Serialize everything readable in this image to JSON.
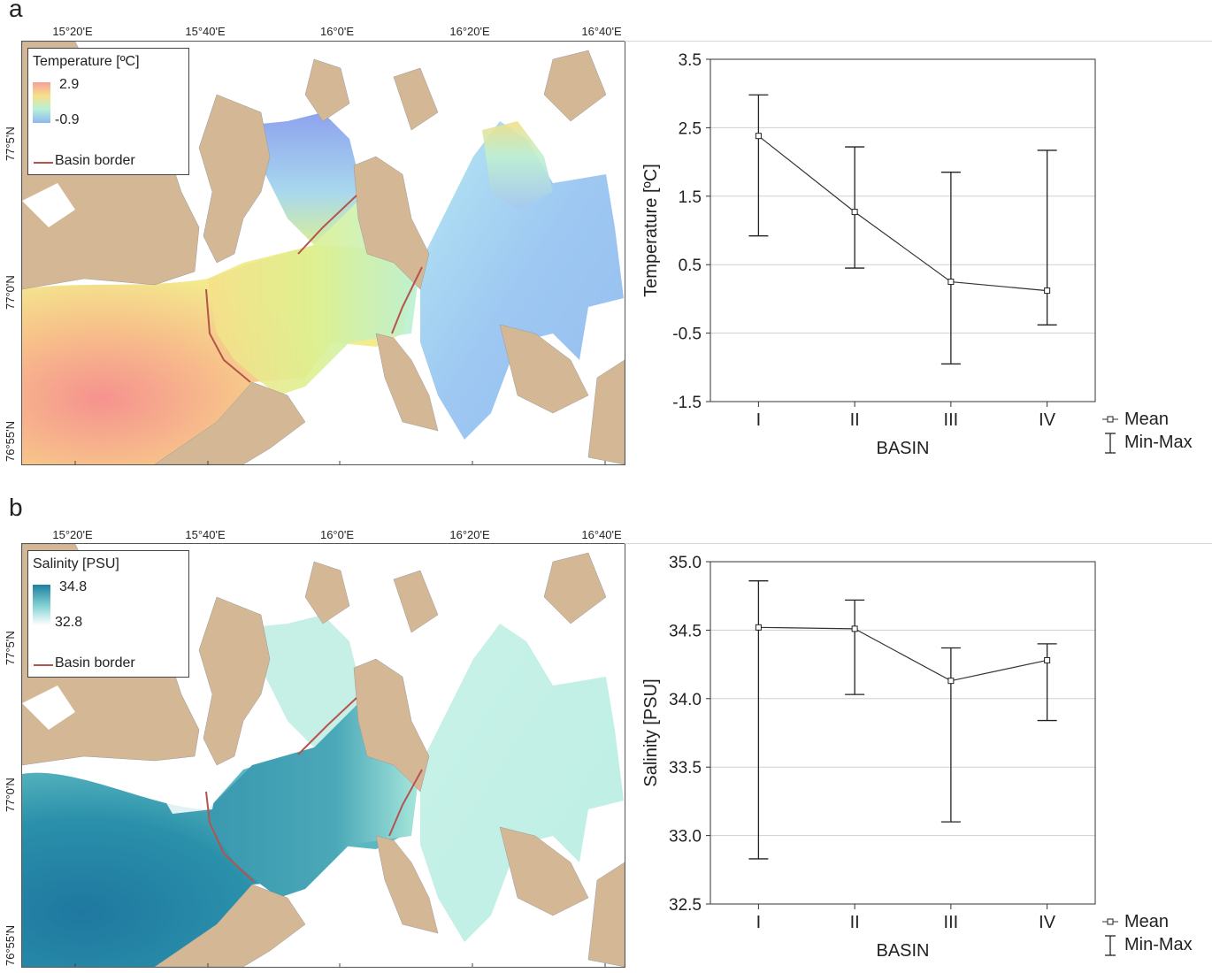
{
  "panels": [
    {
      "letter": "a",
      "map": {
        "lon_ticks": [
          "15°20'E",
          "15°40'E",
          "16°0'E",
          "16°20'E",
          "16°40'E"
        ],
        "lat_ticks": [
          "77°5'N",
          "77°0'N",
          "76°55'N"
        ],
        "legend_title": "Temperature [ºC]",
        "legend_max": "2.9",
        "legend_min": "-0.9",
        "legend_border": "Basin border",
        "gradient_colors": [
          "#f7a09a",
          "#f6e08a",
          "#b8f0d8",
          "#8fb6f0"
        ]
      }
    },
    {
      "letter": "b",
      "map": {
        "lon_ticks": [
          "15°20'E",
          "15°40'E",
          "16°0'E",
          "16°20'E",
          "16°40'E"
        ],
        "lat_ticks": [
          "77°5'N",
          "77°0'N",
          "76°55'N"
        ],
        "legend_title": "Salinity [PSU]",
        "legend_max": "34.8",
        "legend_min": "32.8",
        "legend_border": "Basin border",
        "gradient_colors": [
          "#1f7fa0",
          "#7fd0d0",
          "#ffffff"
        ]
      }
    }
  ],
  "colors": {
    "land": "#d4b896",
    "border_line": "#b5544e",
    "warm": "#f7a09a",
    "cool": "#8fb6f0",
    "saline": "#2a88a8",
    "fresh": "#d8f6ee"
  },
  "chart_data": [
    {
      "type": "line",
      "x": [
        "I",
        "II",
        "III",
        "IV"
      ],
      "xlabel": "BASIN",
      "ylabel": "Temperature [ºC]",
      "ylim": [
        -1.5,
        3.5
      ],
      "yticks": [
        "3.5",
        "2.5",
        "1.5",
        "0.5",
        "-0.5",
        "-1.5"
      ],
      "ytick_values": [
        3.5,
        2.5,
        1.5,
        0.5,
        -0.5,
        -1.5
      ],
      "series": [
        {
          "name": "Mean",
          "values": [
            2.38,
            1.27,
            0.25,
            0.12
          ]
        }
      ],
      "min": [
        0.92,
        0.45,
        -0.95,
        -0.38
      ],
      "max": [
        2.98,
        2.22,
        1.85,
        2.17
      ],
      "legend": [
        "Mean",
        "Min-Max"
      ],
      "legend_position": "bottom-right",
      "grid": true
    },
    {
      "type": "line",
      "x": [
        "I",
        "II",
        "III",
        "IV"
      ],
      "xlabel": "BASIN",
      "ylabel": "Salinity [PSU]",
      "ylim": [
        32.5,
        35.0
      ],
      "yticks": [
        "35.0",
        "34.5",
        "34.0",
        "33.5",
        "33.0",
        "32.5"
      ],
      "ytick_values": [
        35.0,
        34.5,
        34.0,
        33.5,
        33.0,
        32.5
      ],
      "series": [
        {
          "name": "Mean",
          "values": [
            34.52,
            34.51,
            34.13,
            34.28
          ]
        }
      ],
      "min": [
        32.83,
        34.03,
        33.1,
        33.84
      ],
      "max": [
        34.86,
        34.72,
        34.37,
        34.4
      ],
      "legend": [
        "Mean",
        "Min-Max"
      ],
      "legend_position": "bottom-right",
      "grid": true
    }
  ]
}
